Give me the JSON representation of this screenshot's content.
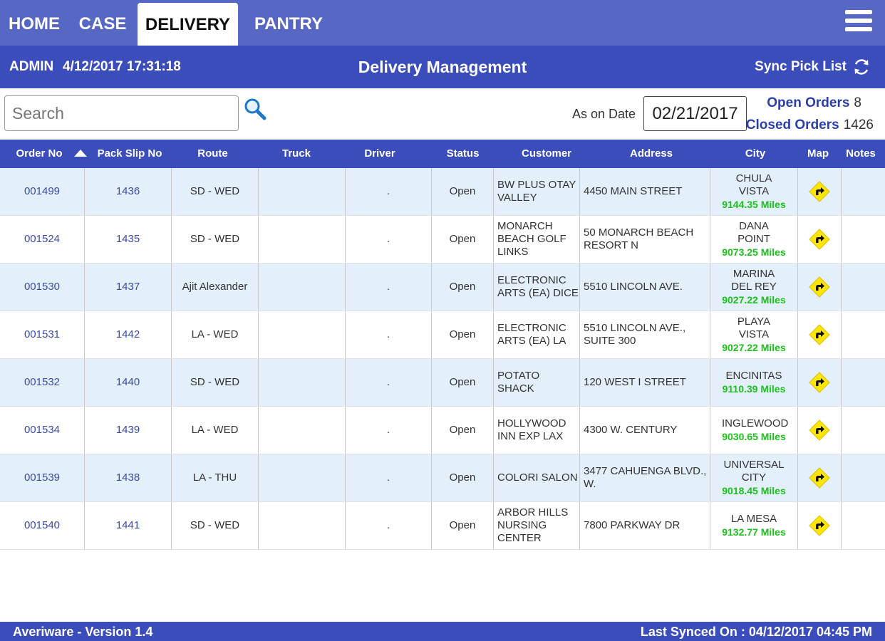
{
  "nav": {
    "tabs": [
      {
        "label": "HOME"
      },
      {
        "label": "CASE"
      },
      {
        "label": "DELIVERY"
      },
      {
        "label": "PANTRY"
      }
    ],
    "active_tab": "DELIVERY",
    "menu_icon": "hamburger-menu-icon"
  },
  "header": {
    "user": "ADMIN",
    "datetime": "4/12/2017 17:31:18",
    "title": "Delivery Management",
    "sync_label": "Sync Pick List",
    "sync_icon": "refresh-icon"
  },
  "toolbar": {
    "search_placeholder": "Search",
    "search_icon": "magnifier-icon",
    "as_on_date_label": "As on Date",
    "as_on_date_value": "02/21/2017",
    "open_orders_label": "Open Orders",
    "open_orders_count": "8",
    "closed_orders_label": "Closed Orders",
    "closed_orders_count": "1426"
  },
  "table": {
    "columns": [
      "Order No",
      "Pack Slip No",
      "Route",
      "Truck",
      "Driver",
      "Status",
      "Customer",
      "Address",
      "City",
      "Map",
      "Notes"
    ],
    "sort_column": "Order No",
    "sort_direction": "ascending",
    "rows": [
      {
        "order_no": "001499",
        "pack_slip": "1436",
        "route": "SD - WED",
        "truck": "",
        "driver": ".",
        "status": "Open",
        "customer": "BW PLUS OTAY VALLEY",
        "address": "4450 MAIN STREET",
        "city": "CHULA VISTA",
        "miles": "9144.35 Miles",
        "notes": ""
      },
      {
        "order_no": "001524",
        "pack_slip": "1435",
        "route": "SD - WED",
        "truck": "",
        "driver": ".",
        "status": "Open",
        "customer": "MONARCH BEACH GOLF LINKS",
        "address": "50 MONARCH BEACH RESORT N",
        "city": "DANA POINT",
        "miles": "9073.25 Miles",
        "notes": ""
      },
      {
        "order_no": "001530",
        "pack_slip": "1437",
        "route": "Ajit Alexander",
        "truck": "",
        "driver": ".",
        "status": "Open",
        "customer": "ELECTRONIC ARTS (EA) DICE",
        "address": "5510 LINCOLN AVE.",
        "city": "MARINA DEL REY",
        "miles": "9027.22 Miles",
        "notes": ""
      },
      {
        "order_no": "001531",
        "pack_slip": "1442",
        "route": "LA - WED",
        "truck": "",
        "driver": ".",
        "status": "Open",
        "customer": "ELECTRONIC ARTS (EA) LA",
        "address": "5510 LINCOLN AVE., SUITE 300",
        "city": "PLAYA VISTA",
        "miles": "9027.22 Miles",
        "notes": ""
      },
      {
        "order_no": "001532",
        "pack_slip": "1440",
        "route": "SD - WED",
        "truck": "",
        "driver": ".",
        "status": "Open",
        "customer": "POTATO SHACK",
        "address": "120 WEST I STREET",
        "city": "ENCINITAS",
        "miles": "9110.39 Miles",
        "notes": ""
      },
      {
        "order_no": "001534",
        "pack_slip": "1439",
        "route": "LA - WED",
        "truck": "",
        "driver": ".",
        "status": "Open",
        "customer": "HOLLYWOOD INN EXP LAX",
        "address": "4300 W. CENTURY",
        "city": "INGLEWOOD",
        "miles": "9030.65 Miles",
        "notes": ""
      },
      {
        "order_no": "001539",
        "pack_slip": "1438",
        "route": "LA - THU",
        "truck": "",
        "driver": ".",
        "status": "Open",
        "customer": "COLORI SALON",
        "address": "3477 CAHUENGA BLVD., W.",
        "city": "UNIVERSAL CITY",
        "miles": "9018.45 Miles",
        "notes": ""
      },
      {
        "order_no": "001540",
        "pack_slip": "1441",
        "route": "SD - WED",
        "truck": "",
        "driver": ".",
        "status": "Open",
        "customer": "ARBOR HILLS NURSING CENTER",
        "address": "7800 PARKWAY DR",
        "city": "LA MESA",
        "miles": "9132.77 Miles",
        "notes": ""
      }
    ],
    "map_icon": "directions-icon"
  },
  "footer": {
    "version": "Averiware - Version 1.4",
    "last_synced": "Last Synced On : 04/12/2017 04:45 PM"
  },
  "colors": {
    "nav_bg": "#5767c4",
    "header_bg": "#3b4cbb",
    "row_alt_bg": "#e3effa",
    "link": "#3a4ba8",
    "miles": "#1bc21b",
    "map_icon": "#ffe600"
  }
}
